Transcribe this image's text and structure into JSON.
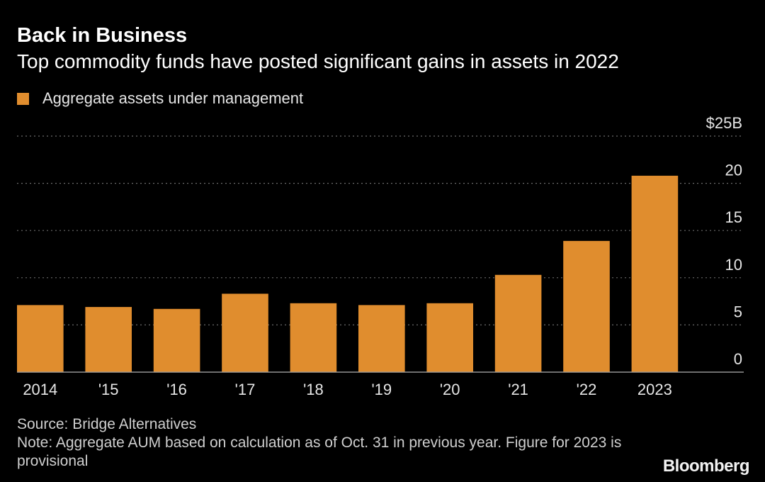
{
  "header": {
    "title": "Back in Business",
    "subtitle": "Top commodity funds have posted significant gains in assets in 2022"
  },
  "legend": {
    "label": "Aggregate assets under management"
  },
  "colors": {
    "background": "#000000",
    "bar": "#E08D2E",
    "grid": "#6b6b6b",
    "axis_text": "#e6e6e6"
  },
  "chart_data": {
    "type": "bar",
    "title": "Back in Business",
    "subtitle": "Top commodity funds have posted significant gains in assets in 2022",
    "categories": [
      "2014",
      "'15",
      "'16",
      "'17",
      "'18",
      "'19",
      "'20",
      "'21",
      "'22",
      "2023"
    ],
    "series": [
      {
        "name": "Aggregate assets under management",
        "values": [
          7.1,
          6.9,
          6.7,
          8.3,
          7.3,
          7.1,
          7.3,
          10.3,
          13.9,
          20.8
        ]
      }
    ],
    "y_ticks": [
      0,
      5,
      10,
      15,
      20,
      25
    ],
    "y_tick_labels": [
      "0",
      "5",
      "10",
      "15",
      "20",
      "$25B"
    ],
    "ylim": [
      0,
      25
    ],
    "xlabel": "",
    "ylabel": "",
    "grid": true,
    "legend_position": "top-left"
  },
  "footer": {
    "source": "Source: Bridge Alternatives",
    "note": "Note: Aggregate AUM based on calculation as of Oct. 31 in previous year. Figure for 2023 is provisional",
    "logo": "Bloomberg"
  }
}
